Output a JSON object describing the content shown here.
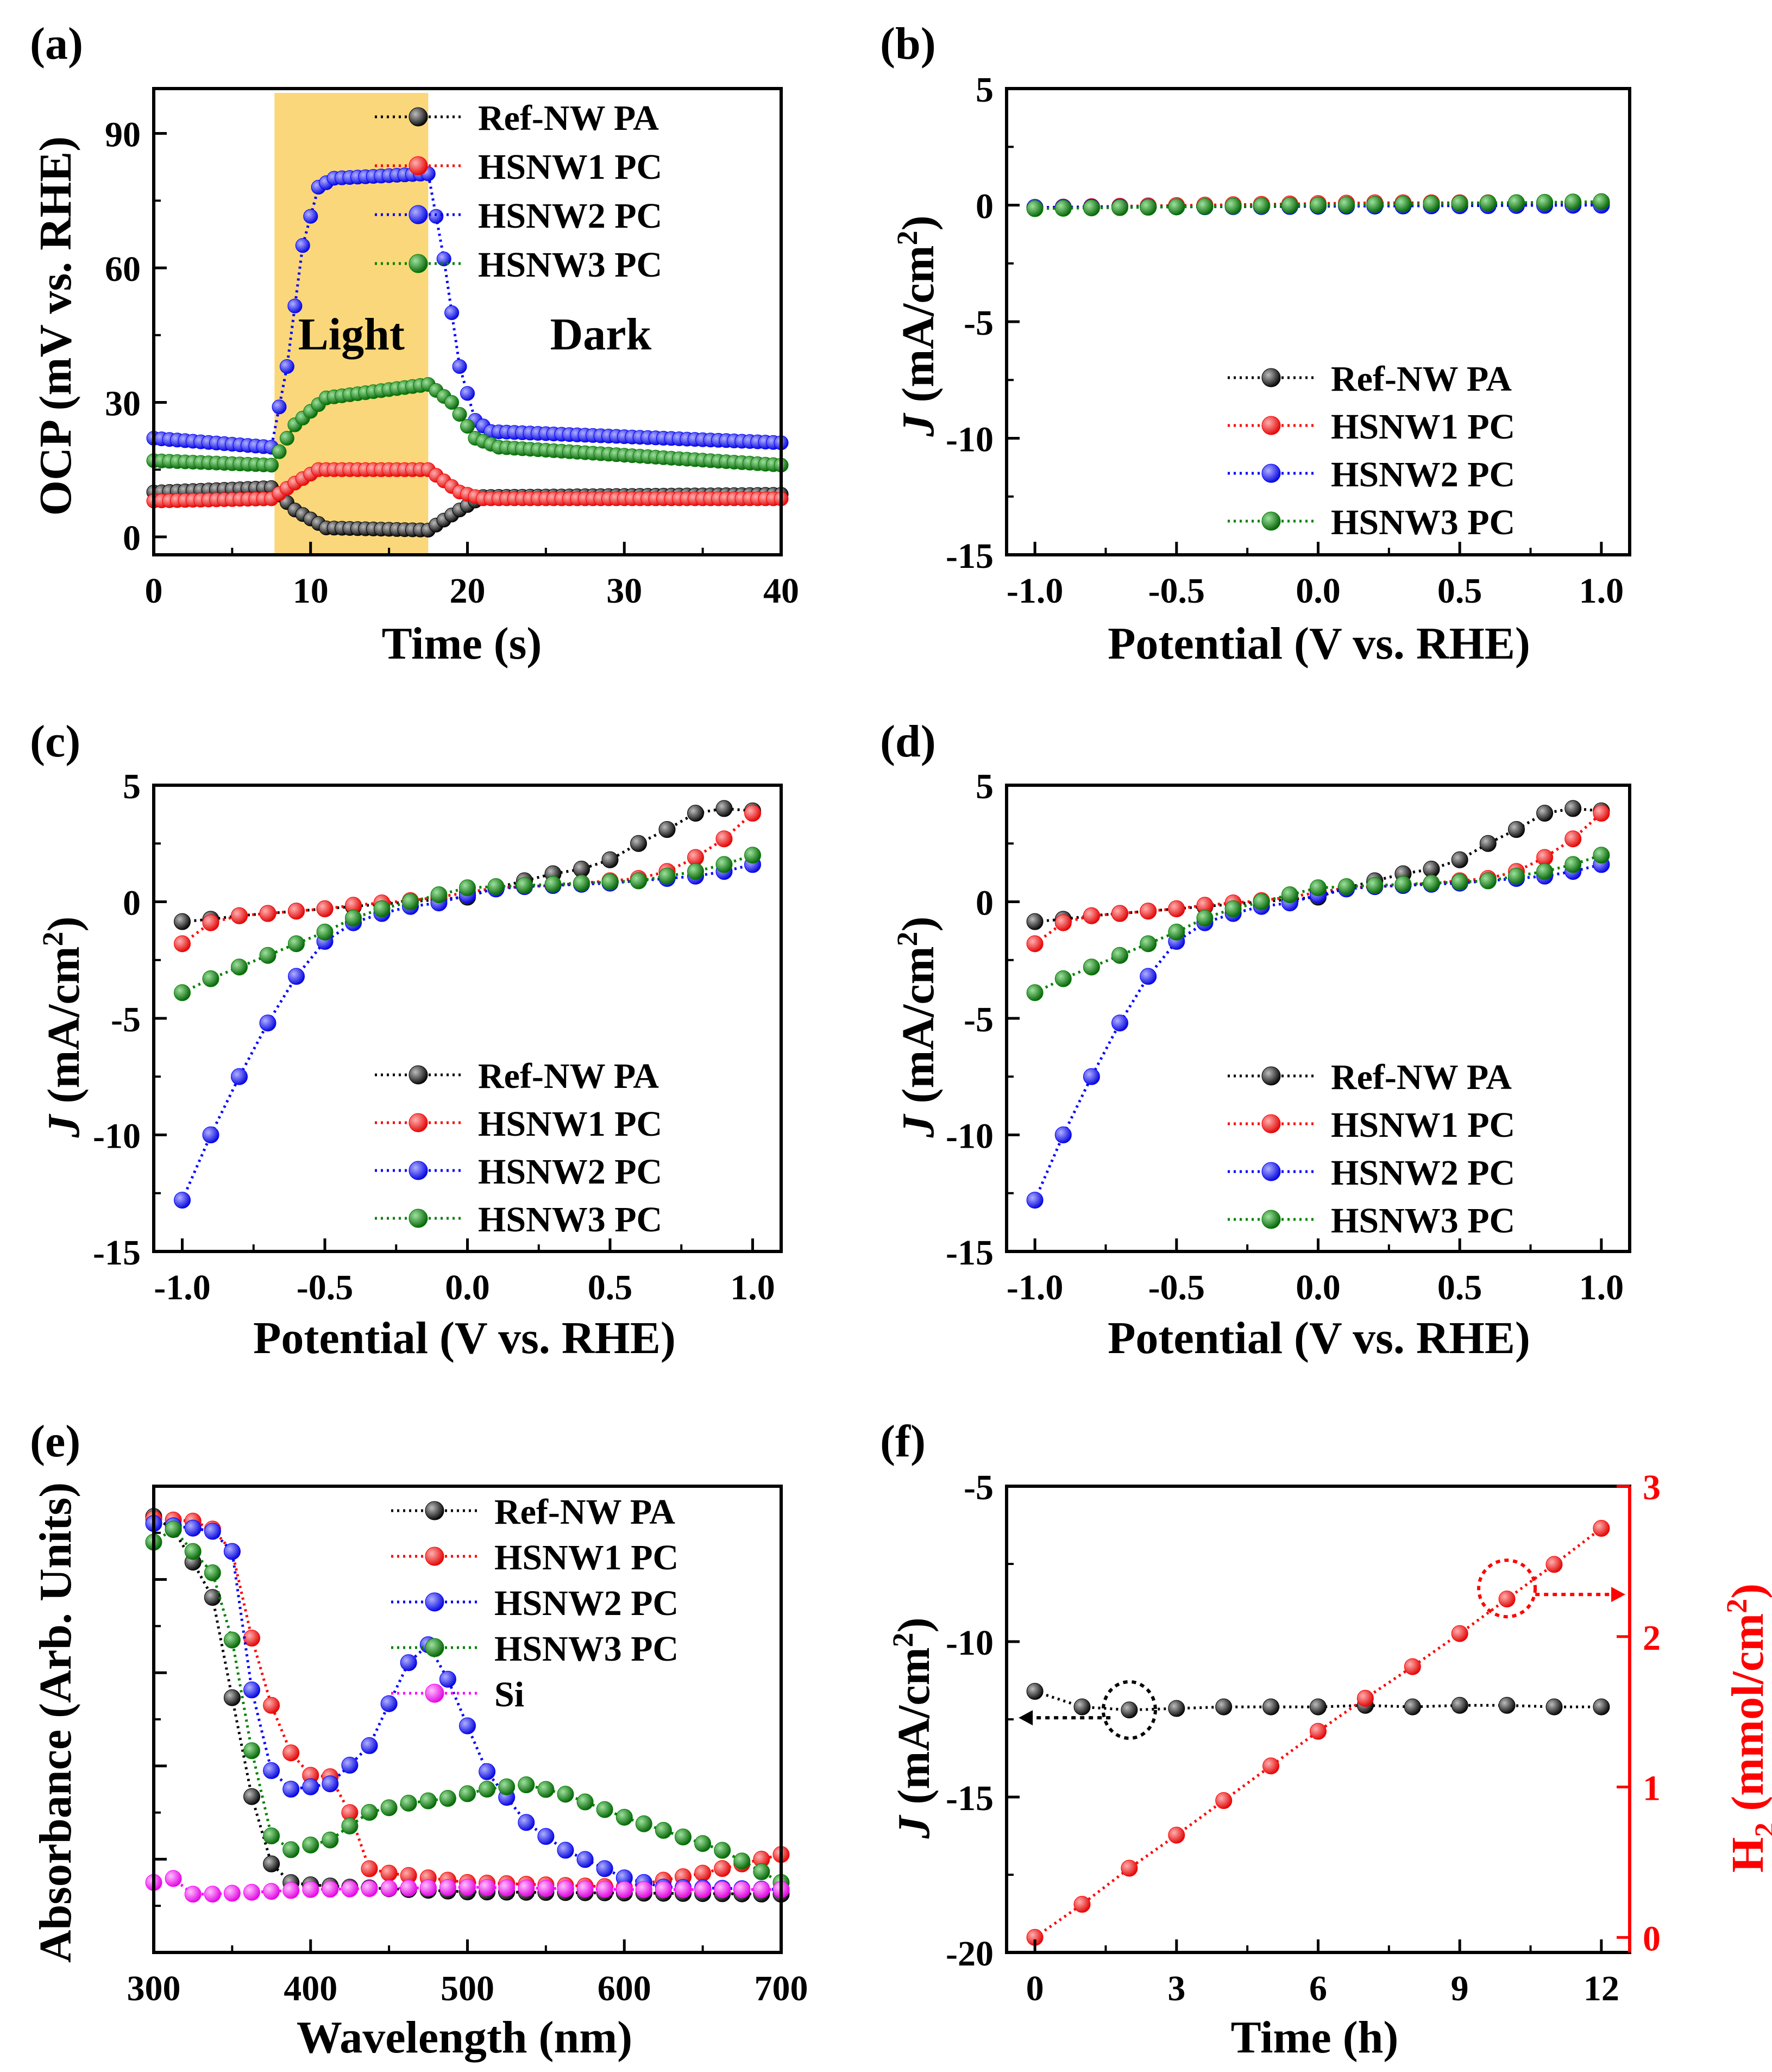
{
  "figure": {
    "colors": {
      "ref": "#000000",
      "hs1": "#ff0000",
      "hs2": "#0000ff",
      "hs3": "#008000",
      "si": "#ff00ff",
      "light_band": "#fad77a"
    }
  },
  "chart_data": [
    {
      "id": "a",
      "panel_label": "(a)",
      "type": "line",
      "xlabel": "Time (s)",
      "ylabel": "OCP (mV vs. RHE)",
      "xlim": [
        0,
        40
      ],
      "ylim": [
        -4,
        100
      ],
      "xticks": [
        0,
        10,
        20,
        30,
        40
      ],
      "yticks": [
        0,
        30,
        60,
        90
      ],
      "xtick_labels": [
        "0",
        "10",
        "20",
        "30",
        "40"
      ],
      "ytick_labels": [
        "0",
        "30",
        "60",
        "90"
      ],
      "shaded": {
        "x0": 7.7,
        "x1": 17.5
      },
      "annotations": [
        {
          "text": "Light",
          "x": 12.6,
          "y": 45
        },
        {
          "text": "Dark",
          "x": 28.5,
          "y": 45
        }
      ],
      "legend_pos": "top-right",
      "series": [
        {
          "name": "Ref-NW PA",
          "color": "ref",
          "step": 0.5,
          "x": [
            0,
            7.5,
            9,
            11,
            17.5,
            19.5,
            21,
            40
          ],
          "y": [
            10,
            11,
            6,
            2,
            1.5,
            6,
            9,
            9.5
          ]
        },
        {
          "name": "HSNW1 PC",
          "color": "hs1",
          "step": 0.5,
          "x": [
            0,
            7.5,
            9,
            10.5,
            17.5,
            19.5,
            21,
            40
          ],
          "y": [
            8,
            8.5,
            12,
            15,
            15,
            10,
            8.5,
            8.5
          ]
        },
        {
          "name": "HSNW2 PC",
          "color": "hs2",
          "step": 0.5,
          "x": [
            0,
            7.5,
            8.5,
            9.5,
            10.5,
            11.5,
            17.5,
            18.5,
            19.5,
            20.5,
            21.5,
            40
          ],
          "y": [
            22,
            20,
            38,
            65,
            78,
            80,
            81,
            62,
            38,
            26,
            23.5,
            21
          ]
        },
        {
          "name": "HSNW3 PC",
          "color": "hs3",
          "step": 0.5,
          "x": [
            0,
            7.5,
            9,
            11,
            17.5,
            19,
            20.5,
            22,
            40
          ],
          "y": [
            17,
            16,
            25,
            31,
            34,
            30,
            22,
            20,
            16
          ]
        }
      ]
    },
    {
      "id": "b",
      "panel_label": "(b)",
      "type": "line",
      "xlabel": "Potential (V vs. RHE)",
      "ylabel_italic": "J",
      "ylabel_rest": " (mA/cm",
      "ylabel_sup": "2",
      "ylabel_close": ")",
      "xlim": [
        -1.1,
        1.1
      ],
      "ylim": [
        -15,
        5
      ],
      "xticks": [
        -1.0,
        -0.5,
        0.0,
        0.5,
        1.0
      ],
      "yticks": [
        5,
        0,
        -5,
        -10,
        -15
      ],
      "xtick_labels": [
        "-1.0",
        "-0.5",
        "0.0",
        "0.5",
        "1.0"
      ],
      "ytick_labels": [
        "5",
        "0",
        "-5",
        "-10",
        "-15"
      ],
      "legend_pos": "bottom-right",
      "series": [
        {
          "name": "Ref-NW PA",
          "color": "ref",
          "step": 0.1,
          "x": [
            -1.0,
            1.0
          ],
          "y": [
            -0.1,
            0.1
          ]
        },
        {
          "name": "HSNW1 PC",
          "color": "hs1",
          "step": 0.1,
          "x": [
            -1.0,
            0.2,
            1.0
          ],
          "y": [
            -0.1,
            0.1,
            0.1
          ]
        },
        {
          "name": "HSNW2 PC",
          "color": "hs2",
          "step": 0.1,
          "x": [
            -1.0,
            1.0
          ],
          "y": [
            -0.1,
            0.0
          ]
        },
        {
          "name": "HSNW3 PC",
          "color": "hs3",
          "step": 0.1,
          "x": [
            -1.0,
            1.0
          ],
          "y": [
            -0.15,
            0.15
          ]
        }
      ]
    },
    {
      "id": "c",
      "panel_label": "(c)",
      "type": "line",
      "xlabel": "Potential (V vs. RHE)",
      "ylabel_italic": "J",
      "ylabel_rest": " (mA/cm",
      "ylabel_sup": "2",
      "ylabel_close": ")",
      "xlim": [
        -1.1,
        1.1
      ],
      "ylim": [
        -15,
        5
      ],
      "xticks": [
        -1.0,
        -0.5,
        0.0,
        0.5,
        1.0
      ],
      "yticks": [
        5,
        0,
        -5,
        -10,
        -15
      ],
      "xtick_labels": [
        "-1.0",
        "-0.5",
        "0.0",
        "0.5",
        "1.0"
      ],
      "ytick_labels": [
        "5",
        "0",
        "-5",
        "-10",
        "-15"
      ],
      "legend_pos": "bottom-right",
      "series": [
        {
          "name": "Ref-NW PA",
          "color": "ref",
          "x": [
            -1.0,
            -0.9,
            -0.8,
            -0.7,
            -0.6,
            -0.5,
            -0.4,
            -0.3,
            -0.2,
            -0.1,
            0.0,
            0.1,
            0.2,
            0.3,
            0.4,
            0.5,
            0.6,
            0.7,
            0.8,
            0.9,
            1.0
          ],
          "y": [
            -0.85,
            -0.75,
            -0.6,
            -0.5,
            -0.4,
            -0.3,
            -0.2,
            -0.1,
            0.0,
            0.1,
            0.2,
            0.6,
            0.9,
            1.2,
            1.4,
            1.8,
            2.5,
            3.1,
            3.8,
            4.0,
            3.9
          ]
        },
        {
          "name": "HSNW1 PC",
          "color": "hs1",
          "x": [
            -1.0,
            -0.9,
            -0.8,
            -0.7,
            -0.6,
            -0.5,
            -0.4,
            -0.3,
            -0.2,
            -0.1,
            0.0,
            0.1,
            0.2,
            0.3,
            0.4,
            0.5,
            0.6,
            0.7,
            0.8,
            0.9,
            1.0
          ],
          "y": [
            -1.8,
            -0.9,
            -0.6,
            -0.5,
            -0.4,
            -0.3,
            -0.15,
            -0.05,
            0.05,
            0.2,
            0.4,
            0.6,
            0.65,
            0.7,
            0.8,
            0.9,
            1.0,
            1.3,
            1.9,
            2.7,
            3.8
          ]
        },
        {
          "name": "HSNW2 PC",
          "color": "hs2",
          "x": [
            -1.0,
            -0.9,
            -0.8,
            -0.7,
            -0.6,
            -0.5,
            -0.4,
            -0.3,
            -0.2,
            -0.1,
            0.0,
            0.1,
            0.2,
            0.3,
            0.4,
            0.5,
            0.6,
            0.7,
            0.8,
            0.9,
            1.0
          ],
          "y": [
            -12.8,
            -10.0,
            -7.5,
            -5.2,
            -3.2,
            -1.7,
            -0.9,
            -0.5,
            -0.2,
            -0.05,
            0.3,
            0.55,
            0.65,
            0.7,
            0.75,
            0.8,
            0.9,
            1.0,
            1.1,
            1.3,
            1.6
          ]
        },
        {
          "name": "HSNW3 PC",
          "color": "hs3",
          "x": [
            -1.0,
            -0.9,
            -0.8,
            -0.7,
            -0.6,
            -0.5,
            -0.4,
            -0.3,
            -0.2,
            -0.1,
            0.0,
            0.1,
            0.2,
            0.3,
            0.4,
            0.5,
            0.6,
            0.7,
            0.8,
            0.9,
            1.0
          ],
          "y": [
            -3.9,
            -3.3,
            -2.8,
            -2.3,
            -1.8,
            -1.3,
            -0.7,
            -0.3,
            0.0,
            0.3,
            0.6,
            0.65,
            0.7,
            0.75,
            0.8,
            0.85,
            0.9,
            1.1,
            1.3,
            1.6,
            2.0
          ]
        }
      ]
    },
    {
      "id": "d",
      "panel_label": "(d)",
      "type": "line",
      "xlabel": "Potential (V vs. RHE)",
      "ylabel_italic": "J",
      "ylabel_rest": " (mA/cm",
      "ylabel_sup": "2",
      "ylabel_close": ")",
      "xlim": [
        -1.1,
        1.1
      ],
      "ylim": [
        -15,
        5
      ],
      "xticks": [
        -1.0,
        -0.5,
        0.0,
        0.5,
        1.0
      ],
      "yticks": [
        5,
        0,
        -5,
        -10,
        -15
      ],
      "xtick_labels": [
        "-1.0",
        "-0.5",
        "0.0",
        "0.5",
        "1.0"
      ],
      "ytick_labels": [
        "5",
        "0",
        "-5",
        "-10",
        "-15"
      ],
      "legend_pos": "bottom-right",
      "series": [
        {
          "name": "Ref-NW PA",
          "color": "ref",
          "x": [
            -1.0,
            -0.9,
            -0.8,
            -0.7,
            -0.6,
            -0.5,
            -0.4,
            -0.3,
            -0.2,
            -0.1,
            0.0,
            0.1,
            0.2,
            0.3,
            0.4,
            0.5,
            0.6,
            0.7,
            0.8,
            0.9,
            1.0
          ],
          "y": [
            -0.85,
            -0.75,
            -0.6,
            -0.5,
            -0.4,
            -0.3,
            -0.2,
            -0.1,
            0.0,
            0.1,
            0.2,
            0.6,
            0.9,
            1.2,
            1.4,
            1.8,
            2.5,
            3.1,
            3.8,
            4.0,
            3.9
          ]
        },
        {
          "name": "HSNW1 PC",
          "color": "hs1",
          "x": [
            -1.0,
            -0.9,
            -0.8,
            -0.7,
            -0.6,
            -0.5,
            -0.4,
            -0.3,
            -0.2,
            -0.1,
            0.0,
            0.1,
            0.2,
            0.3,
            0.4,
            0.5,
            0.6,
            0.7,
            0.8,
            0.9,
            1.0
          ],
          "y": [
            -1.8,
            -0.9,
            -0.6,
            -0.5,
            -0.4,
            -0.3,
            -0.15,
            -0.05,
            0.05,
            0.2,
            0.4,
            0.6,
            0.65,
            0.7,
            0.8,
            0.9,
            1.0,
            1.3,
            1.9,
            2.7,
            3.8
          ]
        },
        {
          "name": "HSNW2 PC",
          "color": "hs2",
          "x": [
            -1.0,
            -0.9,
            -0.8,
            -0.7,
            -0.6,
            -0.5,
            -0.4,
            -0.3,
            -0.2,
            -0.1,
            0.0,
            0.1,
            0.2,
            0.3,
            0.4,
            0.5,
            0.6,
            0.7,
            0.8,
            0.9,
            1.0
          ],
          "y": [
            -12.8,
            -10.0,
            -7.5,
            -5.2,
            -3.2,
            -1.7,
            -0.9,
            -0.5,
            -0.2,
            -0.05,
            0.3,
            0.55,
            0.65,
            0.7,
            0.75,
            0.8,
            0.9,
            1.0,
            1.1,
            1.3,
            1.6
          ]
        },
        {
          "name": "HSNW3 PC",
          "color": "hs3",
          "x": [
            -1.0,
            -0.9,
            -0.8,
            -0.7,
            -0.6,
            -0.5,
            -0.4,
            -0.3,
            -0.2,
            -0.1,
            0.0,
            0.1,
            0.2,
            0.3,
            0.4,
            0.5,
            0.6,
            0.7,
            0.8,
            0.9,
            1.0
          ],
          "y": [
            -3.9,
            -3.3,
            -2.8,
            -2.3,
            -1.8,
            -1.3,
            -0.7,
            -0.3,
            0.0,
            0.3,
            0.6,
            0.65,
            0.7,
            0.75,
            0.8,
            0.85,
            0.9,
            1.1,
            1.3,
            1.6,
            2.0
          ]
        }
      ]
    },
    {
      "id": "e",
      "panel_label": "(e)",
      "type": "line",
      "xlabel": "Wavelength (nm)",
      "ylabel": "Absorbance (Arb. Units)",
      "xlim": [
        300,
        700
      ],
      "ylim": [
        0,
        100
      ],
      "xticks": [
        300,
        400,
        500,
        600,
        700
      ],
      "yticks": [
        0,
        20,
        40,
        60,
        80,
        100
      ],
      "xtick_labels": [
        "300",
        "400",
        "500",
        "600",
        "700"
      ],
      "ytick_labels": [],
      "legend_pos": "top-right",
      "series": [
        {
          "name": "Ref-NW PA",
          "color": "ref",
          "step": 12.5,
          "x": [
            300,
            312,
            337,
            362,
            375,
            387,
            400,
            425,
            500,
            700
          ],
          "y": [
            93.5,
            91,
            77,
            34,
            19,
            15,
            14.5,
            14,
            13,
            12.5
          ]
        },
        {
          "name": "HSNW1 PC",
          "color": "hs1",
          "step": 12.5,
          "x": [
            300,
            325,
            337,
            350,
            362,
            375,
            387,
            400,
            412,
            425,
            437,
            450,
            500,
            600,
            650,
            700
          ],
          "y": [
            93,
            92.5,
            91,
            86,
            68,
            53,
            43,
            38,
            38,
            30,
            18,
            17,
            15,
            14,
            17,
            21
          ]
        },
        {
          "name": "HSNW2 PC",
          "color": "hs2",
          "step": 12.5,
          "x": [
            300,
            325,
            337,
            350,
            362,
            375,
            387,
            412,
            437,
            462,
            475,
            487,
            512,
            537,
            562,
            600,
            625,
            700
          ],
          "y": [
            92,
            91,
            90.5,
            86,
            57,
            39,
            35,
            36,
            44,
            62,
            66,
            59,
            39,
            28,
            22,
            16,
            14,
            13.5
          ]
        },
        {
          "name": "HSNW3 PC",
          "color": "hs3",
          "step": 12.5,
          "x": [
            300,
            312,
            325,
            337,
            350,
            362,
            375,
            387,
            412,
            437,
            462,
            487,
            512,
            537,
            562,
            600,
            662,
            700
          ],
          "y": [
            88,
            91,
            86,
            82,
            67,
            44,
            25,
            22,
            24,
            30,
            32,
            33,
            35,
            36,
            34,
            29,
            22,
            15
          ]
        },
        {
          "name": "Si",
          "color": "si",
          "step": 12.5,
          "x": [
            300,
            312,
            325,
            337,
            400,
            500,
            600,
            700
          ],
          "y": [
            15,
            16,
            12.5,
            12.5,
            13.5,
            14,
            13.5,
            13.5
          ]
        }
      ]
    },
    {
      "id": "f",
      "panel_label": "(f)",
      "type": "line",
      "dual_axis": true,
      "xlabel": "Time (h)",
      "ylabel_italic": "J",
      "ylabel_rest": " (mA/cm",
      "ylabel_sup": "2",
      "ylabel_close": ")",
      "y2label_main": "H",
      "y2label_sub": "2",
      "y2label_rest": " (mmol/cm",
      "y2label_sup": "2",
      "y2label_close": ")",
      "xlim": [
        -0.6,
        12.6
      ],
      "ylim": [
        -20,
        -5
      ],
      "y2lim": [
        -0.1,
        3.0
      ],
      "xticks": [
        0,
        3,
        6,
        9,
        12
      ],
      "yticks": [
        -5,
        -10,
        -15,
        -20
      ],
      "y2ticks": [
        0,
        1,
        2,
        3
      ],
      "xtick_labels": [
        "0",
        "3",
        "6",
        "9",
        "12"
      ],
      "ytick_labels": [
        "-5",
        "-10",
        "-15",
        "-20"
      ],
      "y2tick_labels": [
        "0",
        "1",
        "2",
        "3"
      ],
      "legend_pos": "none",
      "series": [
        {
          "name": "J",
          "color": "ref",
          "axis": "left",
          "x": [
            0,
            1,
            2,
            3,
            4,
            5,
            6,
            7,
            8,
            9,
            10,
            11,
            12
          ],
          "y": [
            -11.6,
            -12.1,
            -12.2,
            -12.15,
            -12.1,
            -12.1,
            -12.1,
            -12.05,
            -12.1,
            -12.05,
            -12.05,
            -12.1,
            -12.1
          ]
        },
        {
          "name": "H2",
          "color": "hs1",
          "axis": "right",
          "x": [
            0,
            1,
            2,
            3,
            4,
            5,
            6,
            7,
            8,
            9,
            10,
            11,
            12
          ],
          "y": [
            0.0,
            0.22,
            0.46,
            0.68,
            0.91,
            1.14,
            1.37,
            1.59,
            1.8,
            2.02,
            2.25,
            2.48,
            2.72
          ]
        }
      ]
    }
  ]
}
